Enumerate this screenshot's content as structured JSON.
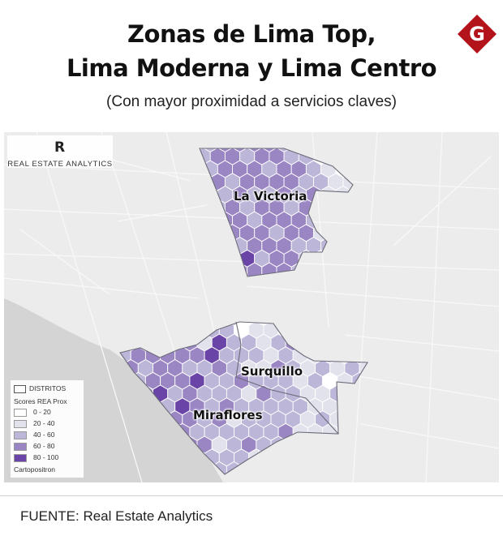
{
  "header": {
    "title_line1": "Zonas de Lima Top,",
    "title_line2": "Lima Moderna y Lima Centro",
    "subtitle": "(Con mayor proximidad a servicios claves)",
    "logo_letter": "G",
    "logo_color": "#b3141b"
  },
  "map": {
    "watermark": {
      "mark": "R",
      "text": "REAL ESTATE ANALYTICS"
    },
    "district_labels": {
      "la_victoria": "La Victoria",
      "surquillo": "Surquillo",
      "miraflores": "Miraflores"
    },
    "sea_color": "#d4d4d4",
    "land_color": "#ececec"
  },
  "legend": {
    "distritos": "DISTRITOS",
    "title": "Scores REA Prox",
    "classes": [
      {
        "range": "0 - 20",
        "color": "#ffffff"
      },
      {
        "range": "20 - 40",
        "color": "#e2e2ec"
      },
      {
        "range": "40 - 60",
        "color": "#bcb6d8"
      },
      {
        "range": "60 - 80",
        "color": "#9b86c4"
      },
      {
        "range": "80 - 100",
        "color": "#6a44a6"
      }
    ],
    "credit": "Cartopositron"
  },
  "footer": {
    "source": "FUENTE: Real Estate Analytics"
  }
}
